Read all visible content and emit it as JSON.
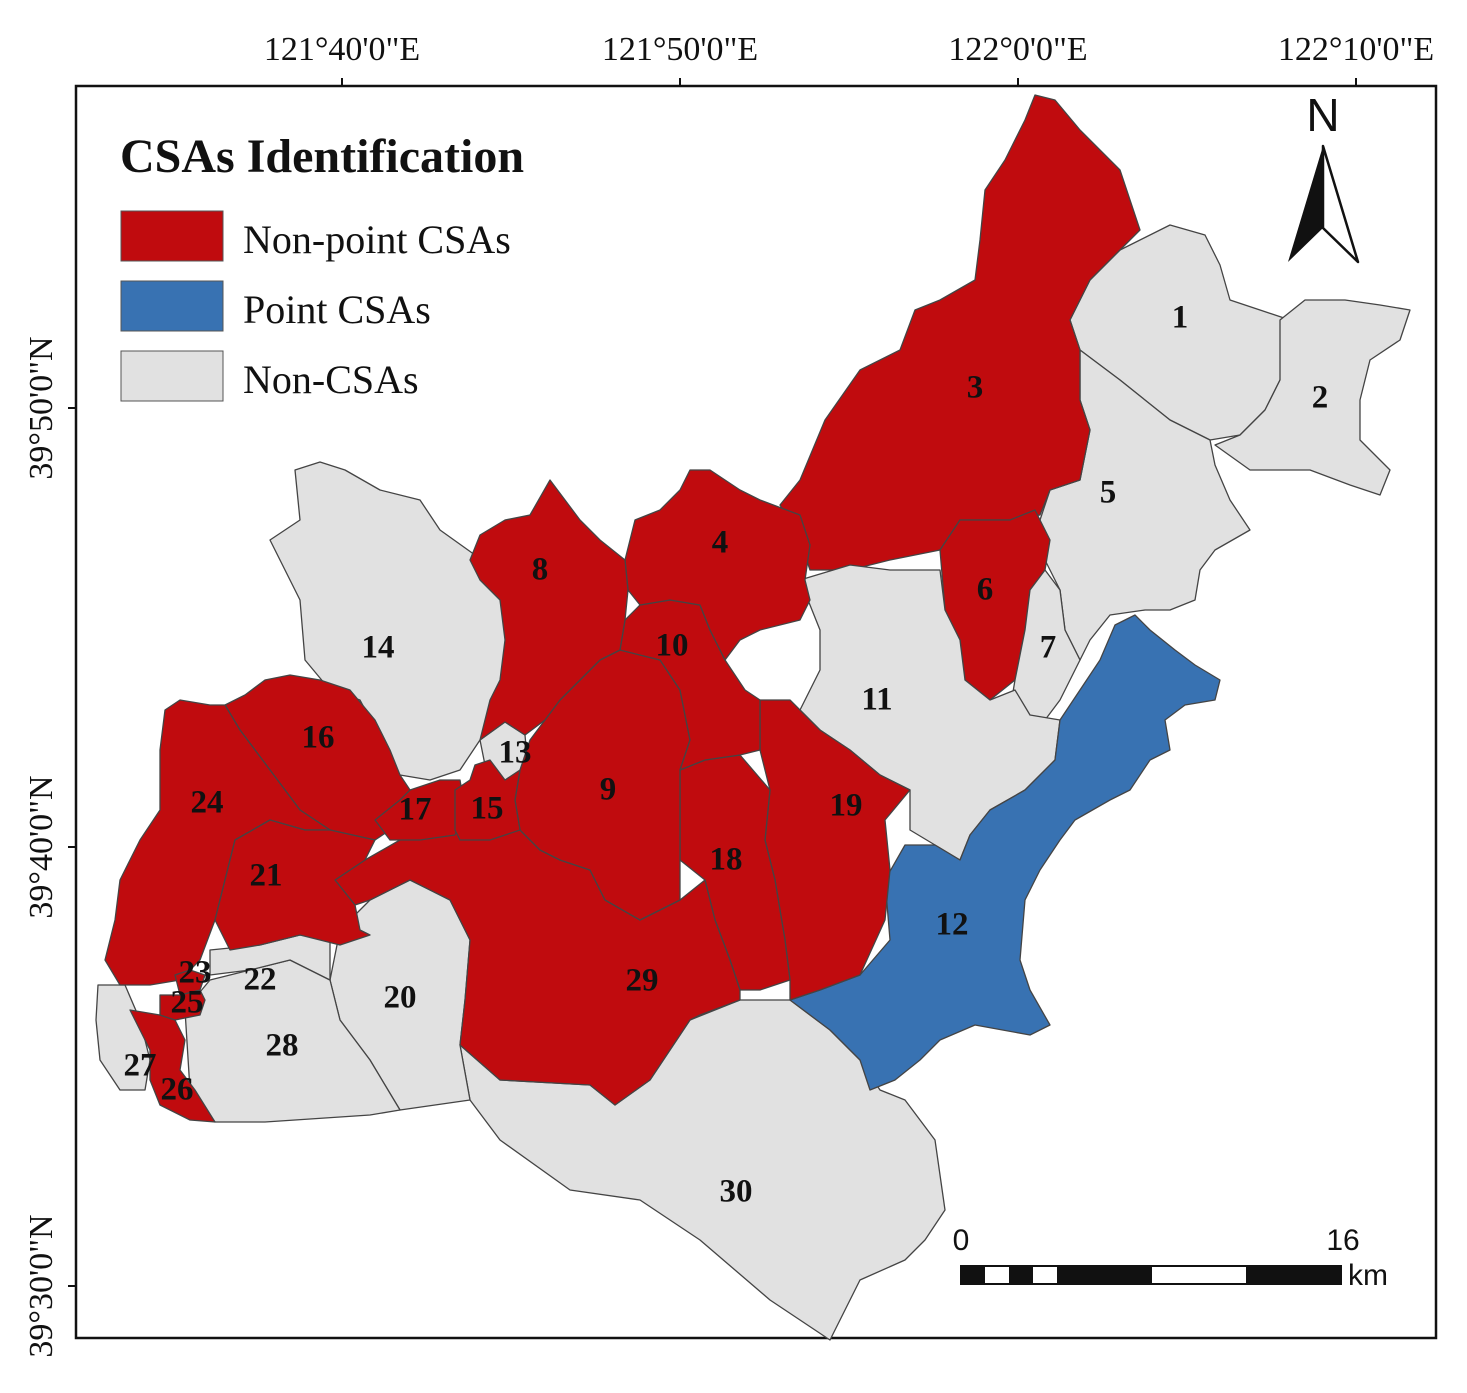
{
  "legend": {
    "title": "CSAs Identification",
    "items": [
      {
        "key": "nonpoint",
        "label": "Non-point CSAs",
        "color": "#c00b0e"
      },
      {
        "key": "point",
        "label": "Point CSAs",
        "color": "#3872b2"
      },
      {
        "key": "noncsa",
        "label": "Non-CSAs",
        "color": "#e1e1e1"
      }
    ]
  },
  "axes": {
    "top": [
      "121°40'0\"E",
      "121°50'0\"E",
      "122°0'0\"E",
      "122°10'0\"E"
    ],
    "left": [
      "39°50'0\"N",
      "39°40'0\"N",
      "39°30'0\"N"
    ]
  },
  "north_arrow": {
    "label": "N"
  },
  "scale_bar": {
    "start": "0",
    "end": "16",
    "unit": "km"
  },
  "subbasins": [
    {
      "id": "1",
      "category": "noncsa"
    },
    {
      "id": "2",
      "category": "noncsa"
    },
    {
      "id": "3",
      "category": "nonpoint"
    },
    {
      "id": "4",
      "category": "nonpoint"
    },
    {
      "id": "5",
      "category": "noncsa"
    },
    {
      "id": "6",
      "category": "nonpoint"
    },
    {
      "id": "7",
      "category": "noncsa"
    },
    {
      "id": "8",
      "category": "nonpoint"
    },
    {
      "id": "9",
      "category": "nonpoint"
    },
    {
      "id": "10",
      "category": "nonpoint"
    },
    {
      "id": "11",
      "category": "noncsa"
    },
    {
      "id": "12",
      "category": "point"
    },
    {
      "id": "13",
      "category": "noncsa"
    },
    {
      "id": "14",
      "category": "noncsa"
    },
    {
      "id": "15",
      "category": "nonpoint"
    },
    {
      "id": "16",
      "category": "nonpoint"
    },
    {
      "id": "17",
      "category": "nonpoint"
    },
    {
      "id": "18",
      "category": "nonpoint"
    },
    {
      "id": "19",
      "category": "nonpoint"
    },
    {
      "id": "20",
      "category": "noncsa"
    },
    {
      "id": "21",
      "category": "nonpoint"
    },
    {
      "id": "22",
      "category": "noncsa"
    },
    {
      "id": "23",
      "category": "nonpoint"
    },
    {
      "id": "24",
      "category": "nonpoint"
    },
    {
      "id": "25",
      "category": "nonpoint"
    },
    {
      "id": "26",
      "category": "nonpoint"
    },
    {
      "id": "27",
      "category": "noncsa"
    },
    {
      "id": "28",
      "category": "noncsa"
    },
    {
      "id": "29",
      "category": "nonpoint"
    },
    {
      "id": "30",
      "category": "noncsa"
    }
  ]
}
